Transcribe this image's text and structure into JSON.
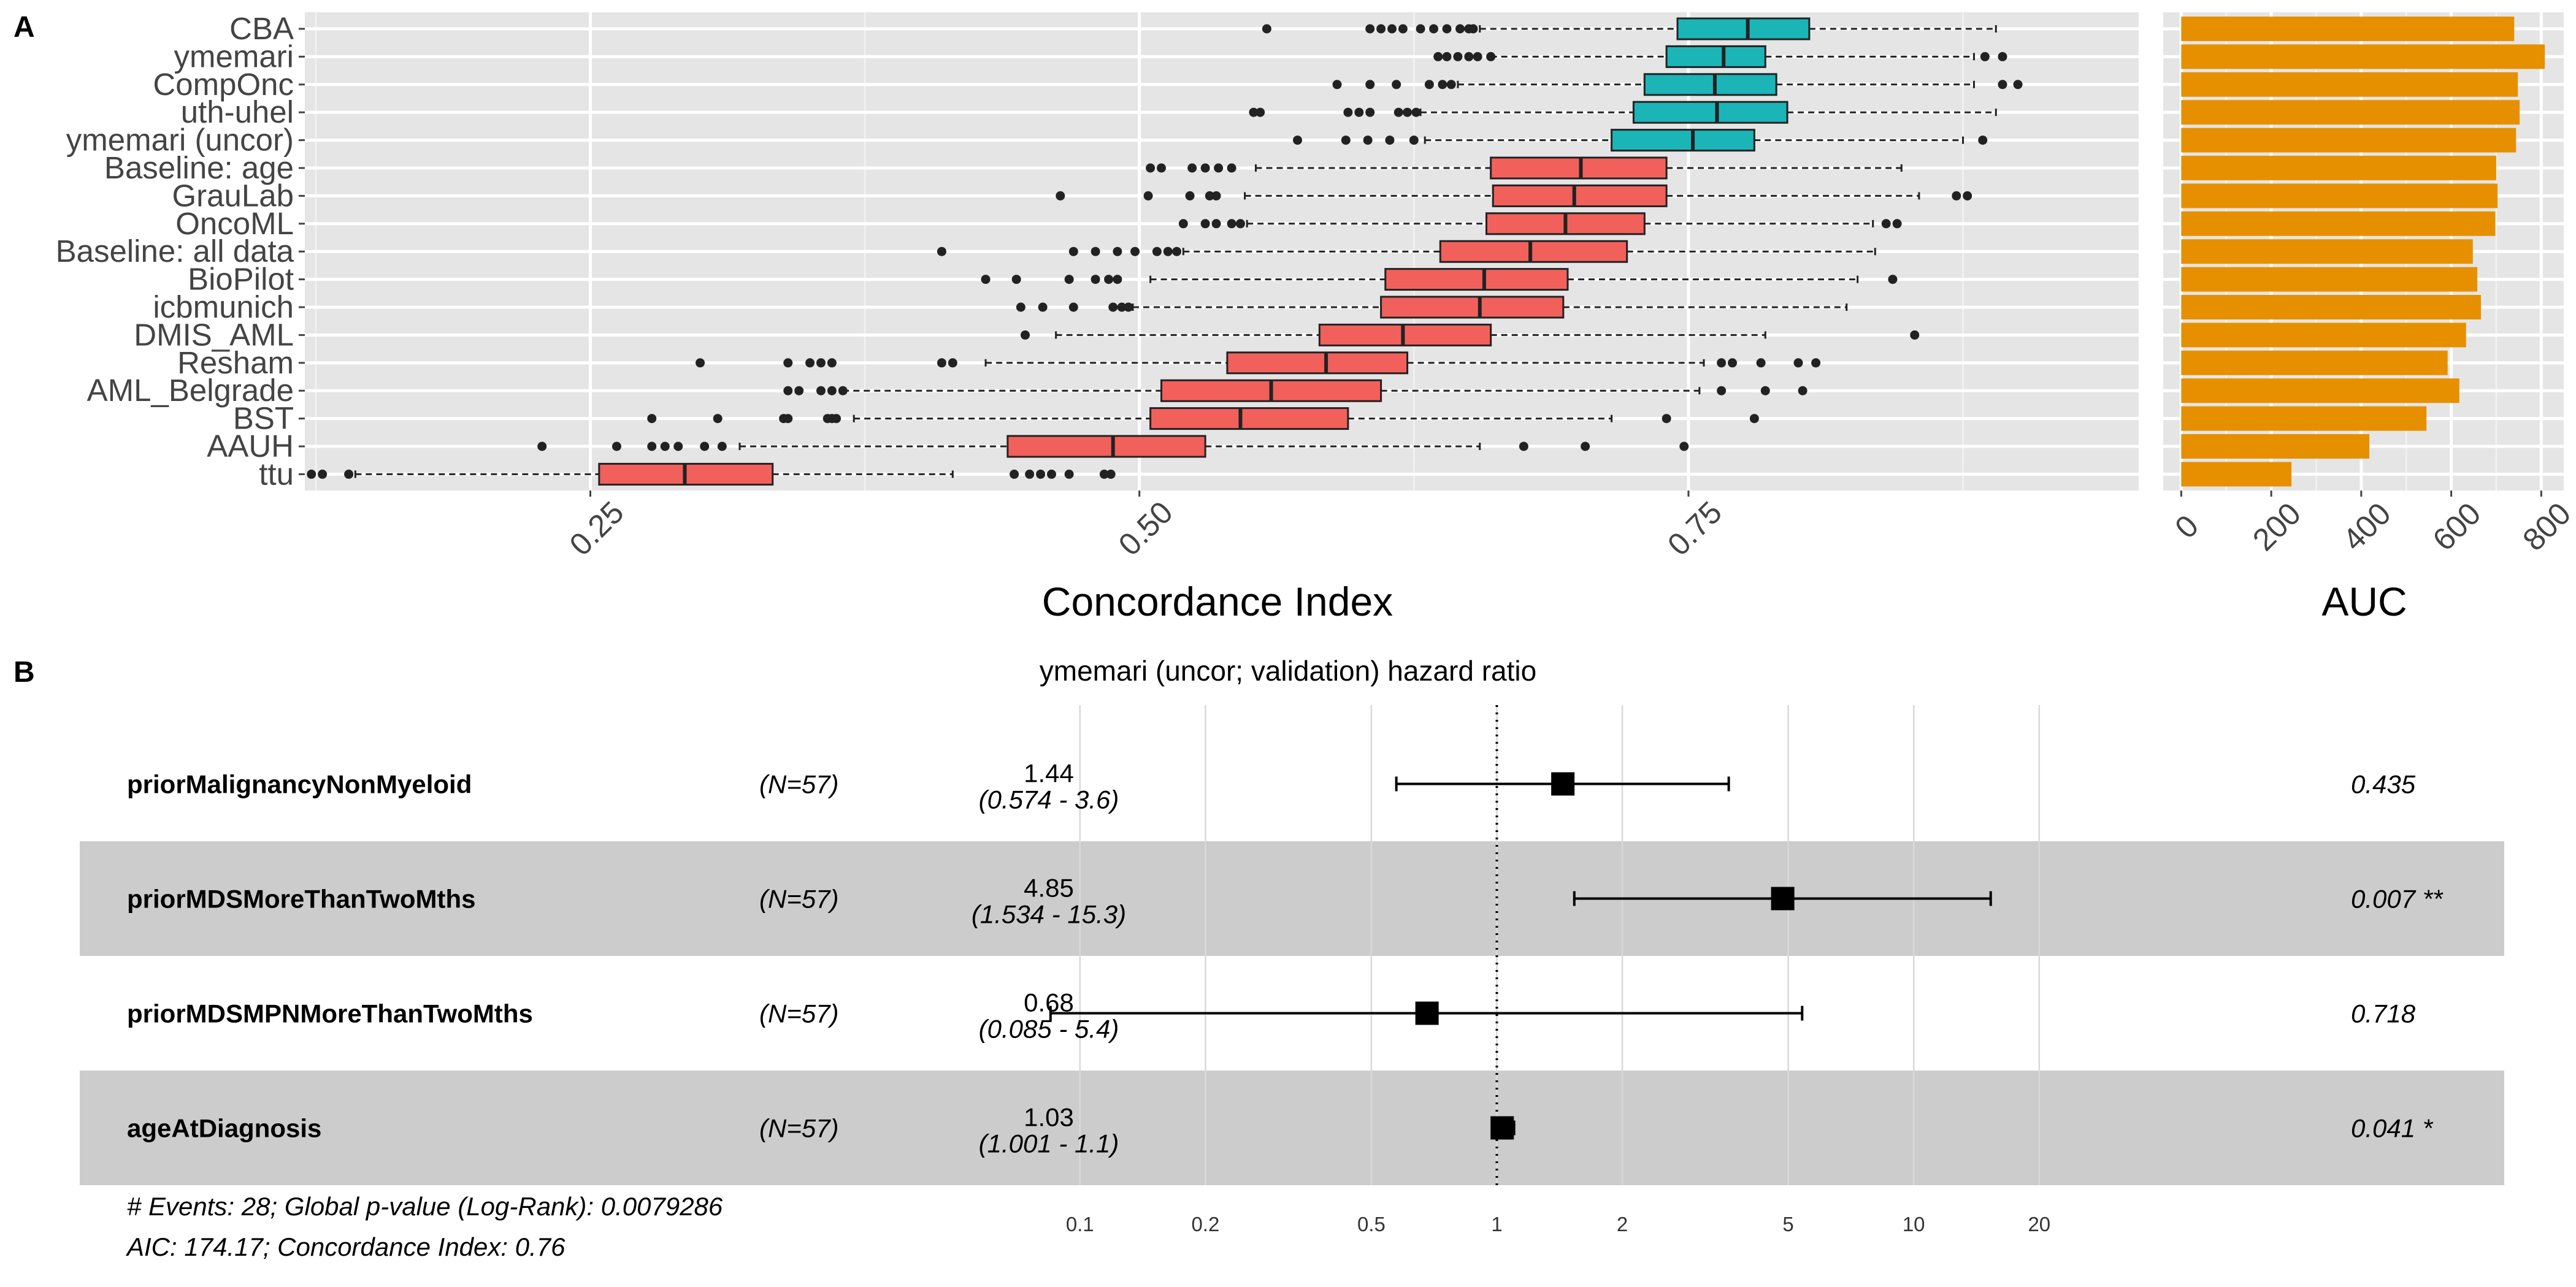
{
  "panel_a_letter": "A",
  "panel_b_letter": "B",
  "chart_data": [
    {
      "type": "boxplot",
      "orientation": "horizontal",
      "xlabel": "Concordance Index",
      "xlim": [
        0.12,
        0.955
      ],
      "xticks": [
        0.25,
        0.5,
        0.75
      ],
      "xtick_labels": [
        "0.25",
        "0.50",
        "0.75"
      ],
      "grid": true,
      "colors": {
        "panel_bg": "#e5e5e5",
        "grid": "#ffffff",
        "top_group": "#1bb5b8",
        "bottom_group": "#f2605c"
      },
      "categories": [
        "CBA",
        "ymemari",
        "CompOnc",
        "uth-uhel",
        "ymemari (uncor)",
        "Baseline: age",
        "GrauLab",
        "OncoML",
        "Baseline: all data",
        "BioPilot",
        "icbmunich",
        "DMIS_AML",
        "Resham",
        "AML_Belgrade",
        "BST",
        "AAUH",
        "ttu"
      ],
      "boxes": [
        {
          "group": "top",
          "wlo": 0.655,
          "q1": 0.745,
          "med": 0.777,
          "q3": 0.805,
          "whi": 0.89,
          "outliers": [
            0.558,
            0.605,
            0.61,
            0.615,
            0.62,
            0.628,
            0.634,
            0.64,
            0.646,
            0.65,
            0.652
          ]
        },
        {
          "group": "top",
          "wlo": 0.66,
          "q1": 0.74,
          "med": 0.766,
          "q3": 0.785,
          "whi": 0.88,
          "outliers": [
            0.636,
            0.64,
            0.645,
            0.65,
            0.654,
            0.66,
            0.885,
            0.893
          ]
        },
        {
          "group": "top",
          "wlo": 0.645,
          "q1": 0.73,
          "med": 0.762,
          "q3": 0.79,
          "whi": 0.88,
          "outliers": [
            0.59,
            0.605,
            0.617,
            0.632,
            0.638,
            0.642,
            0.893,
            0.9
          ]
        },
        {
          "group": "top",
          "wlo": 0.628,
          "q1": 0.725,
          "med": 0.763,
          "q3": 0.795,
          "whi": 0.89,
          "outliers": [
            0.552,
            0.555,
            0.595,
            0.6,
            0.605,
            0.618,
            0.622,
            0.626
          ]
        },
        {
          "group": "top",
          "wlo": 0.63,
          "q1": 0.715,
          "med": 0.752,
          "q3": 0.78,
          "whi": 0.875,
          "outliers": [
            0.572,
            0.594,
            0.604,
            0.614,
            0.625,
            0.884
          ]
        },
        {
          "group": "bottom",
          "wlo": 0.553,
          "q1": 0.66,
          "med": 0.701,
          "q3": 0.74,
          "whi": 0.847,
          "outliers": [
            0.505,
            0.51,
            0.524,
            0.53,
            0.536,
            0.542
          ]
        },
        {
          "group": "bottom",
          "wlo": 0.548,
          "q1": 0.661,
          "med": 0.698,
          "q3": 0.74,
          "whi": 0.855,
          "outliers": [
            0.464,
            0.504,
            0.523,
            0.532,
            0.535,
            0.872,
            0.877
          ]
        },
        {
          "group": "bottom",
          "wlo": 0.549,
          "q1": 0.658,
          "med": 0.694,
          "q3": 0.73,
          "whi": 0.834,
          "outliers": [
            0.52,
            0.53,
            0.535,
            0.542,
            0.546,
            0.84,
            0.845
          ]
        },
        {
          "group": "bottom",
          "wlo": 0.52,
          "q1": 0.637,
          "med": 0.678,
          "q3": 0.722,
          "whi": 0.835,
          "outliers": [
            0.41,
            0.47,
            0.48,
            0.49,
            0.498,
            0.508,
            0.513,
            0.517
          ]
        },
        {
          "group": "bottom",
          "wlo": 0.505,
          "q1": 0.612,
          "med": 0.657,
          "q3": 0.695,
          "whi": 0.827,
          "outliers": [
            0.43,
            0.444,
            0.468,
            0.48,
            0.486,
            0.49,
            0.843
          ]
        },
        {
          "group": "bottom",
          "wlo": 0.497,
          "q1": 0.61,
          "med": 0.655,
          "q3": 0.693,
          "whi": 0.822,
          "outliers": [
            0.446,
            0.456,
            0.47,
            0.488,
            0.492,
            0.495
          ]
        },
        {
          "group": "bottom",
          "wlo": 0.462,
          "q1": 0.582,
          "med": 0.62,
          "q3": 0.66,
          "whi": 0.785,
          "outliers": [
            0.448,
            0.853
          ]
        },
        {
          "group": "bottom",
          "wlo": 0.43,
          "q1": 0.54,
          "med": 0.585,
          "q3": 0.622,
          "whi": 0.757,
          "outliers": [
            0.3,
            0.34,
            0.35,
            0.355,
            0.36,
            0.41,
            0.415,
            0.765,
            0.77,
            0.783,
            0.8,
            0.808
          ]
        },
        {
          "group": "bottom",
          "wlo": 0.365,
          "q1": 0.51,
          "med": 0.56,
          "q3": 0.61,
          "whi": 0.755,
          "outliers": [
            0.34,
            0.345,
            0.355,
            0.36,
            0.365,
            0.765,
            0.785,
            0.802
          ]
        },
        {
          "group": "bottom",
          "wlo": 0.37,
          "q1": 0.505,
          "med": 0.546,
          "q3": 0.595,
          "whi": 0.715,
          "outliers": [
            0.278,
            0.308,
            0.338,
            0.34,
            0.358,
            0.36,
            0.362,
            0.74,
            0.78
          ]
        },
        {
          "group": "bottom",
          "wlo": 0.318,
          "q1": 0.44,
          "med": 0.488,
          "q3": 0.53,
          "whi": 0.655,
          "outliers": [
            0.228,
            0.262,
            0.278,
            0.284,
            0.29,
            0.302,
            0.31,
            0.675,
            0.703,
            0.748
          ]
        },
        {
          "group": "bottom",
          "wlo": 0.143,
          "q1": 0.254,
          "med": 0.293,
          "q3": 0.333,
          "whi": 0.415,
          "outliers": [
            0.123,
            0.128,
            0.14,
            0.443,
            0.45,
            0.455,
            0.46,
            0.468,
            0.484,
            0.487
          ]
        }
      ]
    },
    {
      "type": "bar",
      "orientation": "horizontal",
      "xlabel": "AUC",
      "xlim": [
        -40,
        850
      ],
      "xticks": [
        0,
        200,
        400,
        600,
        800
      ],
      "xtick_labels": [
        "0",
        "200",
        "400",
        "600",
        "800"
      ],
      "bar_color": "#e69000",
      "categories": [
        "CBA",
        "ymemari",
        "CompOnc",
        "uth-uhel",
        "ymemari (uncor)",
        "Baseline: age",
        "GrauLab",
        "OncoML",
        "Baseline: all data",
        "BioPilot",
        "icbmunich",
        "DMIS_AML",
        "Resham",
        "AML_Belgrade",
        "BST",
        "AAUH",
        "ttu"
      ],
      "values": [
        740,
        808,
        748,
        752,
        744,
        700,
        703,
        698,
        648,
        658,
        666,
        633,
        592,
        618,
        545,
        418,
        245
      ]
    },
    {
      "type": "forest",
      "title": "ymemari (uncor; validation) hazard ratio",
      "scale": "log",
      "xlim": [
        0.06,
        35
      ],
      "xticks": [
        0.1,
        0.2,
        0.5,
        1,
        2,
        5,
        10,
        20
      ],
      "xtick_labels": [
        "0.1",
        "0.2",
        "0.5",
        "1",
        "2",
        "5",
        "10",
        "20"
      ],
      "reference_line": 1,
      "rows": [
        {
          "variable": "priorMalignancyNonMyeloid",
          "n": "(N=57)",
          "hr_text": "1.44",
          "ci_text": "(0.574 -  3.6)",
          "p_text": "0.435",
          "hr": 1.44,
          "lo": 0.574,
          "hi": 3.6,
          "shaded": false
        },
        {
          "variable": "priorMDSMoreThanTwoMths",
          "n": "(N=57)",
          "hr_text": "4.85",
          "ci_text": "(1.534 - 15.3)",
          "p_text": "0.007 **",
          "hr": 4.85,
          "lo": 1.534,
          "hi": 15.3,
          "shaded": true
        },
        {
          "variable": "priorMDSMPNMoreThanTwoMths",
          "n": "(N=57)",
          "hr_text": "0.68",
          "ci_text": "(0.085 -  5.4)",
          "p_text": "0.718",
          "hr": 0.68,
          "lo": 0.085,
          "hi": 5.4,
          "shaded": false
        },
        {
          "variable": "ageAtDiagnosis",
          "n": "(N=57)",
          "hr_text": "1.03",
          "ci_text": "(1.001 -  1.1)",
          "p_text": "0.041 *",
          "hr": 1.03,
          "lo": 1.001,
          "hi": 1.1,
          "shaded": true
        }
      ],
      "footer_lines": [
        "# Events: 28; Global p-value (Log-Rank): 0.0079286",
        "AIC: 174.17; Concordance Index: 0.76"
      ],
      "colors": {
        "shade": "#cccccc",
        "grid": "#d9d9d9"
      }
    }
  ]
}
